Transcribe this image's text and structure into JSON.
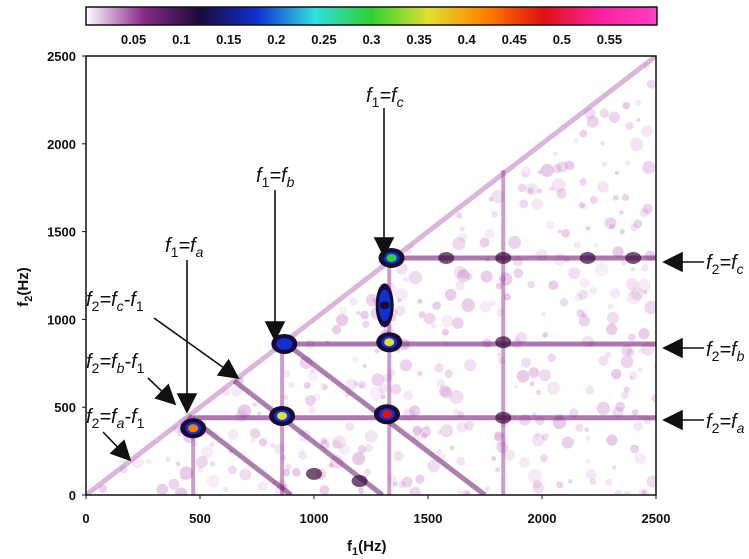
{
  "chart_data": {
    "type": "heatmap",
    "title": "",
    "xlabel": {
      "base": "f",
      "sub": "1",
      "unit": "(Hz)"
    },
    "ylabel": {
      "base": "f",
      "sub": "2",
      "unit": "(Hz)"
    },
    "xlim": [
      0,
      2500
    ],
    "ylim": [
      0,
      2500
    ],
    "x_ticks": [
      0,
      500,
      1000,
      1500,
      2000,
      2500
    ],
    "y_ticks": [
      0,
      500,
      1000,
      1500,
      2000,
      2500
    ],
    "colorbar": {
      "range": [
        0,
        0.6
      ],
      "ticks": [
        "0.05",
        "0.1",
        "0.15",
        "0.2",
        "0.25",
        "0.3",
        "0.35",
        "0.4",
        "0.45",
        "0.5",
        "0.55"
      ],
      "colors": [
        "#ffffff",
        "#8a2a8a",
        "#1a0a3a",
        "#1030d0",
        "#30e0e0",
        "#30d030",
        "#e0e030",
        "#ff8000",
        "#e01010",
        "#ff20a0",
        "#ff40c0"
      ]
    },
    "peaks": [
      {
        "f1": 470,
        "f2": 380,
        "value": 0.42
      },
      {
        "f1": 860,
        "f2": 450,
        "value": 0.33
      },
      {
        "f1": 1320,
        "f2": 460,
        "value": 0.45
      },
      {
        "f1": 870,
        "f2": 860,
        "value": 0.18
      },
      {
        "f1": 1330,
        "f2": 870,
        "value": 0.33
      },
      {
        "f1": 1340,
        "f2": 1350,
        "value": 0.31
      },
      {
        "f1": 1310,
        "f2": 1080,
        "value": 0.12
      }
    ],
    "annotations": [
      {
        "parts": [
          {
            "t": "f"
          },
          {
            "t": "1",
            "sub": true
          },
          {
            "t": "=f"
          },
          {
            "t": "c",
            "sub": true
          }
        ]
      },
      {
        "parts": [
          {
            "t": "f"
          },
          {
            "t": "1",
            "sub": true
          },
          {
            "t": "=f"
          },
          {
            "t": "b",
            "sub": true
          }
        ]
      },
      {
        "parts": [
          {
            "t": "f"
          },
          {
            "t": "1",
            "sub": true
          },
          {
            "t": "=f"
          },
          {
            "t": "a",
            "sub": true
          }
        ]
      },
      {
        "parts": [
          {
            "t": "f"
          },
          {
            "t": "2",
            "sub": true
          },
          {
            "t": "=f"
          },
          {
            "t": "c",
            "sub": true
          },
          {
            "t": "-f"
          },
          {
            "t": "1",
            "sub": true
          }
        ]
      },
      {
        "parts": [
          {
            "t": "f"
          },
          {
            "t": "2",
            "sub": true
          },
          {
            "t": "=f"
          },
          {
            "t": "b",
            "sub": true
          },
          {
            "t": "-f"
          },
          {
            "t": "1",
            "sub": true
          }
        ]
      },
      {
        "parts": [
          {
            "t": "f"
          },
          {
            "t": "2",
            "sub": true
          },
          {
            "t": "=f"
          },
          {
            "t": "a",
            "sub": true
          },
          {
            "t": "-f"
          },
          {
            "t": "1",
            "sub": true
          }
        ]
      },
      {
        "parts": [
          {
            "t": "f"
          },
          {
            "t": "2",
            "sub": true
          },
          {
            "t": "=f"
          },
          {
            "t": "c",
            "sub": true
          }
        ]
      },
      {
        "parts": [
          {
            "t": "f"
          },
          {
            "t": "2",
            "sub": true
          },
          {
            "t": "=f"
          },
          {
            "t": "b",
            "sub": true
          }
        ]
      },
      {
        "parts": [
          {
            "t": "f"
          },
          {
            "t": "2",
            "sub": true
          },
          {
            "t": "=f"
          },
          {
            "t": "a",
            "sub": true
          }
        ]
      }
    ]
  }
}
